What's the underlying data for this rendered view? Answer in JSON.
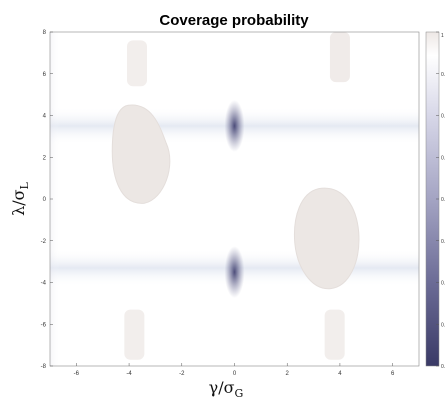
{
  "chart_data": {
    "type": "heatmap",
    "title": "Coverage probability",
    "xlabel": "γ/σ",
    "xlabel_sub": "G",
    "ylabel": "λ/σ",
    "ylabel_sub": "L",
    "xlim": [
      -7,
      7
    ],
    "ylim": [
      -8,
      8
    ],
    "xticks": [
      -6,
      -4,
      -2,
      0,
      2,
      4,
      6
    ],
    "xtick_labels": [
      "-6",
      "-4",
      "-2",
      "0",
      "2",
      "4",
      "6"
    ],
    "yticks": [
      8,
      6,
      4,
      2,
      0,
      -2,
      -4,
      -6,
      -8
    ],
    "ytick_labels": [
      "8",
      "6",
      "4",
      "2",
      "0",
      "-2",
      "-4",
      "-6",
      "-8"
    ],
    "colorbar": {
      "ticks": [
        1,
        0.9,
        0.8,
        0.7,
        0.6,
        0.5,
        0.4,
        0.3,
        0.2
      ],
      "tick_labels": [
        "1",
        "0.",
        "0.",
        "0.",
        "0.",
        "0.",
        "0.",
        "0.",
        "0."
      ],
      "colors": [
        "#3a3a66",
        "#6c6c96",
        "#a4a4c3",
        "#d7d7e8",
        "#ffffff",
        "#f2eded"
      ]
    },
    "regions": [
      {
        "kind": "vertical-band",
        "x_center": 0,
        "x_halfwidth": 1.3,
        "min_value_y": [
          3.5,
          -3.5
        ],
        "color": "#3f3f72"
      },
      {
        "kind": "horizontal-band",
        "y_center": 3.5,
        "y_halfwidth": 0.9,
        "color": "#dde3ef"
      },
      {
        "kind": "horizontal-band",
        "y_center": -3.3,
        "y_halfwidth": 0.9,
        "color": "#dde3ef"
      },
      {
        "kind": "blob",
        "x": -3.5,
        "y": 2.0,
        "color": "#ece7e4"
      },
      {
        "kind": "blob",
        "x": 3.5,
        "y": -1.8,
        "color": "#ece7e4"
      },
      {
        "kind": "blob",
        "x": -3.7,
        "y": 6.5,
        "color": "#f2eeec"
      },
      {
        "kind": "blob",
        "x": 4.0,
        "y": 6.8,
        "color": "#f2eeec"
      },
      {
        "kind": "blob",
        "x": -3.8,
        "y": -6.5,
        "color": "#f2eeec"
      },
      {
        "kind": "blob",
        "x": 3.8,
        "y": -6.5,
        "color": "#f2eeec"
      }
    ]
  }
}
